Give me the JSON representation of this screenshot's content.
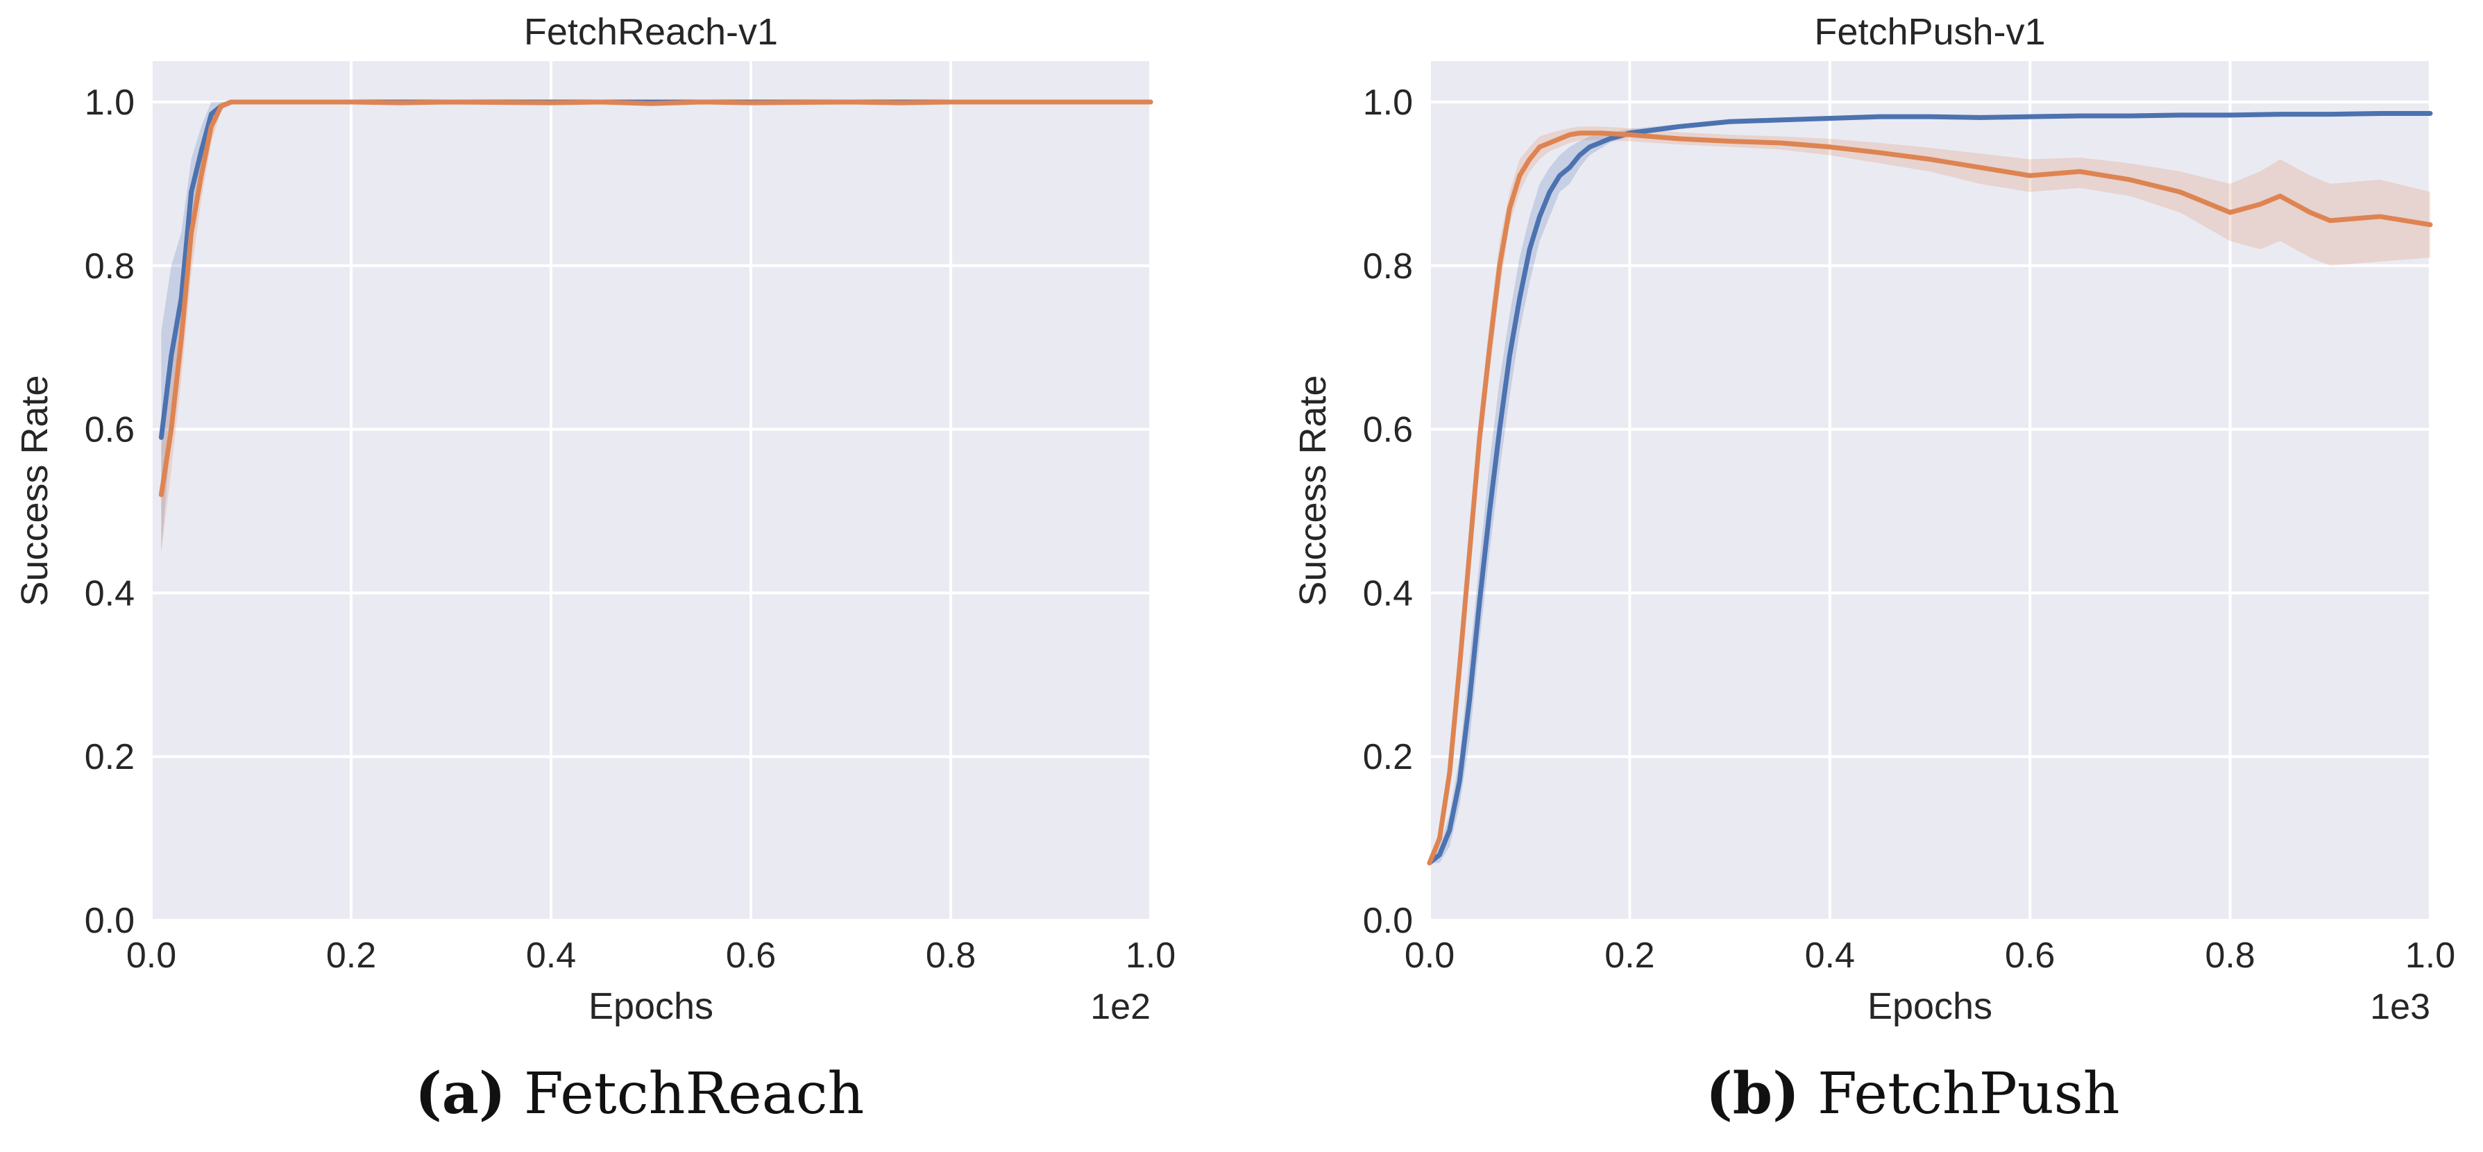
{
  "chart_data": [
    {
      "type": "line",
      "title": "FetchReach-v1",
      "xlabel": "Epochs",
      "ylabel": "Success Rate",
      "x_offset_label": "1e2",
      "xlim": [
        0,
        1.0
      ],
      "ylim": [
        0,
        1.05
      ],
      "xticks": [
        "0.0",
        "0.2",
        "0.4",
        "0.6",
        "0.8",
        "1.0"
      ],
      "yticks": [
        "0.0",
        "0.2",
        "0.4",
        "0.6",
        "0.8",
        "1.0"
      ],
      "grid": true,
      "series": [
        {
          "name": "series-blue",
          "color": "#4c72b0",
          "x": [
            0.01,
            0.02,
            0.03,
            0.04,
            0.05,
            0.06,
            0.07,
            0.08,
            0.1,
            0.2,
            0.3,
            0.4,
            0.5,
            0.6,
            0.7,
            0.8,
            0.9,
            1.0
          ],
          "y": [
            0.59,
            0.69,
            0.76,
            0.89,
            0.94,
            0.985,
            0.995,
            1.0,
            1.0,
            1.0,
            1.0,
            1.0,
            1.0,
            1.0,
            1.0,
            1.0,
            1.0,
            1.0
          ],
          "band_low": [
            0.45,
            0.6,
            0.7,
            0.84,
            0.91,
            0.97,
            0.99,
            1.0,
            1.0,
            1.0,
            1.0,
            1.0,
            1.0,
            1.0,
            1.0,
            1.0,
            1.0,
            1.0
          ],
          "band_high": [
            0.72,
            0.8,
            0.84,
            0.93,
            0.97,
            1.0,
            1.0,
            1.0,
            1.0,
            1.0,
            1.0,
            1.0,
            1.0,
            1.0,
            1.0,
            1.0,
            1.0,
            1.0
          ]
        },
        {
          "name": "series-orange",
          "color": "#dd8452",
          "x": [
            0.01,
            0.02,
            0.03,
            0.04,
            0.05,
            0.06,
            0.07,
            0.08,
            0.1,
            0.2,
            0.25,
            0.3,
            0.4,
            0.45,
            0.5,
            0.55,
            0.6,
            0.7,
            0.75,
            0.8,
            0.9,
            1.0
          ],
          "y": [
            0.52,
            0.6,
            0.71,
            0.84,
            0.91,
            0.97,
            0.995,
            1.0,
            1.0,
            1.0,
            0.999,
            1.0,
            0.999,
            1.0,
            0.998,
            1.0,
            0.999,
            1.0,
            0.999,
            1.0,
            1.0,
            1.0
          ],
          "band_low": [
            0.45,
            0.55,
            0.66,
            0.79,
            0.88,
            0.95,
            0.99,
            1.0,
            1.0,
            0.998,
            0.997,
            0.998,
            0.997,
            0.998,
            0.996,
            0.998,
            0.997,
            0.998,
            0.997,
            0.998,
            0.998,
            1.0
          ],
          "band_high": [
            0.58,
            0.68,
            0.77,
            0.88,
            0.94,
            0.99,
            1.0,
            1.0,
            1.0,
            1.0,
            1.0,
            1.0,
            1.0,
            1.0,
            1.0,
            1.0,
            1.0,
            1.0,
            1.0,
            1.0,
            1.0,
            1.0
          ]
        }
      ]
    },
    {
      "type": "line",
      "title": "FetchPush-v1",
      "xlabel": "Epochs",
      "ylabel": "Success Rate",
      "x_offset_label": "1e3",
      "xlim": [
        0,
        1.0
      ],
      "ylim": [
        0,
        1.05
      ],
      "xticks": [
        "0.0",
        "0.2",
        "0.4",
        "0.6",
        "0.8",
        "1.0"
      ],
      "yticks": [
        "0.0",
        "0.2",
        "0.4",
        "0.6",
        "0.8",
        "1.0"
      ],
      "grid": true,
      "series": [
        {
          "name": "series-blue",
          "color": "#4c72b0",
          "x": [
            0.0,
            0.01,
            0.02,
            0.03,
            0.04,
            0.05,
            0.06,
            0.07,
            0.08,
            0.09,
            0.1,
            0.11,
            0.12,
            0.13,
            0.14,
            0.15,
            0.16,
            0.18,
            0.2,
            0.25,
            0.3,
            0.35,
            0.4,
            0.45,
            0.5,
            0.55,
            0.6,
            0.65,
            0.7,
            0.75,
            0.8,
            0.85,
            0.9,
            0.95,
            1.0
          ],
          "y": [
            0.07,
            0.08,
            0.11,
            0.17,
            0.27,
            0.39,
            0.5,
            0.6,
            0.69,
            0.76,
            0.82,
            0.86,
            0.89,
            0.91,
            0.92,
            0.935,
            0.945,
            0.955,
            0.962,
            0.97,
            0.976,
            0.978,
            0.98,
            0.982,
            0.982,
            0.981,
            0.982,
            0.983,
            0.983,
            0.984,
            0.984,
            0.985,
            0.985,
            0.986,
            0.986
          ],
          "band_low": [
            0.07,
            0.07,
            0.09,
            0.14,
            0.22,
            0.34,
            0.45,
            0.55,
            0.64,
            0.72,
            0.78,
            0.83,
            0.86,
            0.89,
            0.9,
            0.92,
            0.935,
            0.95,
            0.958,
            0.967,
            0.973,
            0.975,
            0.977,
            0.979,
            0.979,
            0.978,
            0.979,
            0.98,
            0.98,
            0.981,
            0.981,
            0.982,
            0.982,
            0.983,
            0.983
          ],
          "band_high": [
            0.075,
            0.09,
            0.13,
            0.2,
            0.32,
            0.44,
            0.56,
            0.66,
            0.74,
            0.81,
            0.86,
            0.9,
            0.92,
            0.935,
            0.945,
            0.952,
            0.958,
            0.962,
            0.967,
            0.973,
            0.979,
            0.981,
            0.983,
            0.985,
            0.985,
            0.984,
            0.985,
            0.986,
            0.986,
            0.987,
            0.987,
            0.988,
            0.988,
            0.989,
            0.989
          ]
        },
        {
          "name": "series-orange",
          "color": "#dd8452",
          "x": [
            0.0,
            0.01,
            0.02,
            0.03,
            0.04,
            0.05,
            0.06,
            0.07,
            0.08,
            0.09,
            0.1,
            0.11,
            0.12,
            0.13,
            0.14,
            0.15,
            0.17,
            0.2,
            0.25,
            0.3,
            0.35,
            0.4,
            0.45,
            0.5,
            0.55,
            0.6,
            0.65,
            0.7,
            0.75,
            0.8,
            0.83,
            0.85,
            0.88,
            0.9,
            0.95,
            1.0
          ],
          "y": [
            0.07,
            0.1,
            0.18,
            0.31,
            0.45,
            0.59,
            0.7,
            0.8,
            0.87,
            0.91,
            0.93,
            0.945,
            0.95,
            0.955,
            0.96,
            0.962,
            0.962,
            0.96,
            0.955,
            0.952,
            0.95,
            0.945,
            0.938,
            0.93,
            0.92,
            0.91,
            0.915,
            0.905,
            0.89,
            0.865,
            0.875,
            0.885,
            0.865,
            0.855,
            0.86,
            0.85
          ],
          "band_low": [
            0.065,
            0.09,
            0.16,
            0.28,
            0.42,
            0.56,
            0.67,
            0.77,
            0.85,
            0.89,
            0.915,
            0.93,
            0.94,
            0.945,
            0.95,
            0.953,
            0.954,
            0.952,
            0.948,
            0.945,
            0.942,
            0.935,
            0.925,
            0.915,
            0.9,
            0.89,
            0.895,
            0.885,
            0.865,
            0.83,
            0.82,
            0.83,
            0.81,
            0.8,
            0.805,
            0.81
          ],
          "band_high": [
            0.075,
            0.11,
            0.2,
            0.34,
            0.48,
            0.62,
            0.73,
            0.83,
            0.89,
            0.93,
            0.945,
            0.958,
            0.962,
            0.965,
            0.968,
            0.97,
            0.97,
            0.968,
            0.963,
            0.96,
            0.958,
            0.955,
            0.95,
            0.944,
            0.937,
            0.93,
            0.932,
            0.925,
            0.915,
            0.9,
            0.915,
            0.93,
            0.91,
            0.9,
            0.905,
            0.89
          ]
        }
      ]
    }
  ],
  "captions": [
    {
      "letter": "(a)",
      "label": "FetchReach"
    },
    {
      "letter": "(b)",
      "label": "FetchPush"
    }
  ]
}
